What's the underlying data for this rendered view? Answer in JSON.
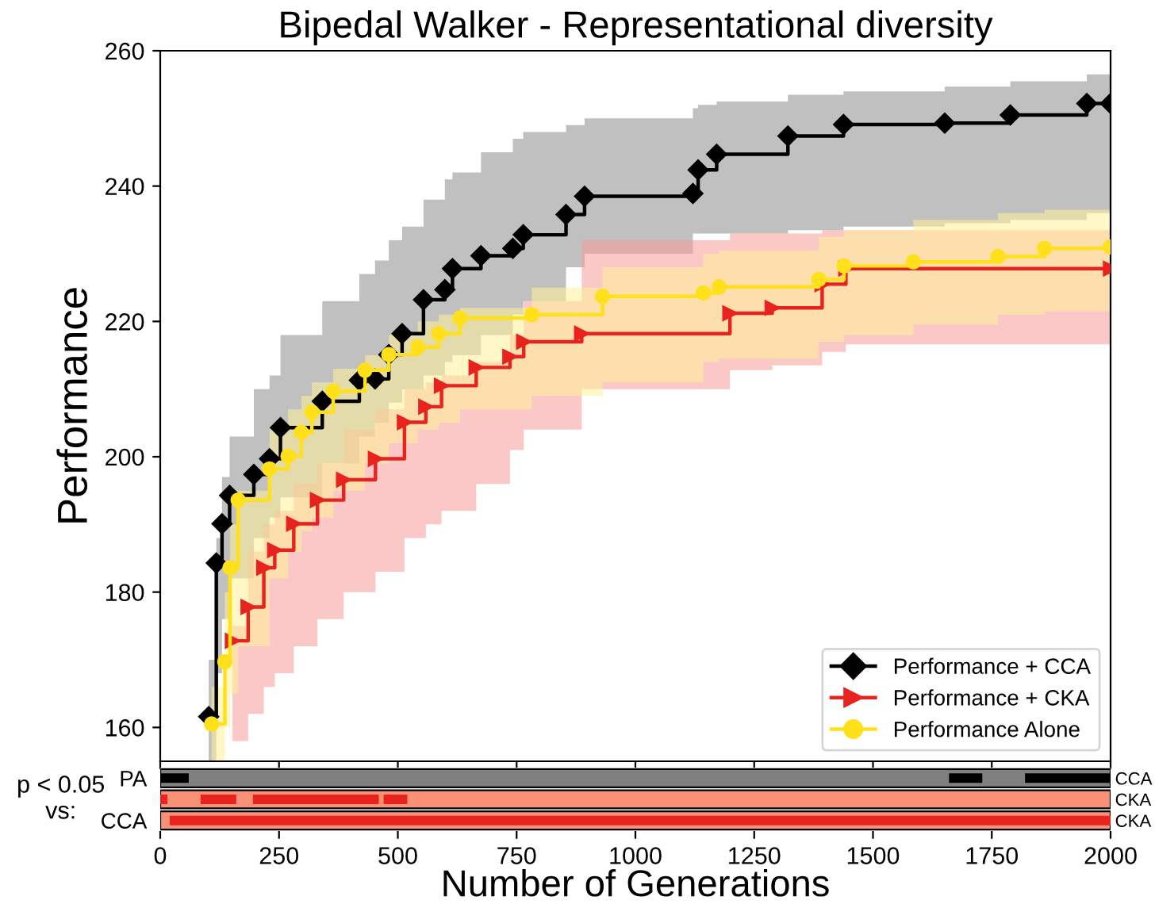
{
  "chart_data": [
    {
      "type": "step",
      "title": "Bipedal Walker - Representational diversity",
      "ylabel": "Performance",
      "xlim": [
        0,
        2000
      ],
      "xticks": [
        {
          "value": 0,
          "label": null
        },
        {
          "value": 250,
          "label": null
        },
        {
          "value": 500,
          "label": null
        },
        {
          "value": 750,
          "label": null
        },
        {
          "value": 1000,
          "label": null
        },
        {
          "value": 1250,
          "label": null
        },
        {
          "value": 1500,
          "label": null
        },
        {
          "value": 1750,
          "label": null
        },
        {
          "value": 2000,
          "label": null
        }
      ],
      "ylim": [
        155,
        260
      ],
      "yticks": [
        160,
        180,
        200,
        220,
        240,
        260
      ],
      "tick_labels": "y",
      "grid": false,
      "legend": "bottom right",
      "series": [
        {
          "name": "Performance + CCA",
          "color": "#000000",
          "marker": "diamond",
          "x": [
            102,
            118,
            130,
            146,
            197,
            230,
            253,
            341,
            419,
            452,
            481,
            509,
            554,
            599,
            615,
            675,
            742,
            764,
            854,
            893,
            1121,
            1132,
            1171,
            1321,
            1438,
            1651,
            1789,
            1950,
            2000
          ],
          "values": [
            161.6,
            184.3,
            190.1,
            194.3,
            197.4,
            199.7,
            204.3,
            208.2,
            211.3,
            211.5,
            215.1,
            218.2,
            223.2,
            224.7,
            227.8,
            229.7,
            230.8,
            232.8,
            235.8,
            238.5,
            238.9,
            242.4,
            244.7,
            247.4,
            249.1,
            249.3,
            250.5,
            252.2,
            252.2
          ],
          "lower": [
            155,
            168,
            176,
            182,
            188,
            191,
            194,
            199,
            203,
            205,
            208,
            210,
            212,
            214,
            215,
            218,
            221,
            223,
            228,
            230,
            233,
            233,
            233,
            233.5,
            234,
            234.5,
            235,
            236,
            236
          ],
          "upper": [
            170,
            188,
            197,
            203,
            210,
            212,
            218,
            223,
            227,
            229,
            232,
            234,
            238,
            241,
            242,
            245,
            247,
            248,
            249,
            250,
            251.5,
            252,
            252.5,
            253.5,
            254,
            254.7,
            255.5,
            256.5,
            256.6
          ]
        },
        {
          "name": "Performance + CKA",
          "color": "#e8221d",
          "marker": "triangle",
          "x": [
            152,
            185,
            218,
            241,
            281,
            331,
            386,
            453,
            514,
            559,
            592,
            665,
            736,
            765,
            887,
            1199,
            1288,
            1393,
            1443,
            2000
          ],
          "values": [
            172.8,
            177.8,
            183.6,
            186.2,
            190.1,
            193.6,
            196.6,
            199.7,
            205.1,
            207.4,
            210.5,
            213.2,
            214.8,
            217,
            218.2,
            221.2,
            222,
            225.5,
            227.8,
            227.8
          ],
          "lower": [
            158,
            162,
            166,
            168,
            172,
            176,
            180,
            183,
            188,
            190,
            192,
            196,
            201,
            204,
            210,
            212.8,
            213.5,
            215.5,
            216.6,
            218.9
          ],
          "upper": [
            175,
            186,
            190,
            192,
            196,
            199,
            204,
            207,
            210,
            211,
            212,
            214,
            218,
            223,
            232,
            233,
            233,
            233.5,
            233.5,
            234.5
          ]
        },
        {
          "name": "Performance Alone",
          "color": "#ffe01a",
          "marker": "circle",
          "x": [
            108,
            136,
            147,
            164,
            230,
            269,
            297,
            319,
            364,
            431,
            481,
            542,
            586,
            631,
            782,
            931,
            1143,
            1176,
            1386,
            1439,
            1585,
            1763,
            1861,
            2000
          ],
          "values": [
            160.5,
            169.7,
            183.6,
            193.6,
            198.2,
            200.1,
            203.6,
            206.6,
            209.7,
            212.8,
            215.1,
            216.2,
            218.2,
            220.5,
            221,
            223.7,
            224.2,
            225.1,
            226.2,
            228.2,
            228.8,
            229.6,
            230.8,
            231
          ],
          "lower": [
            155,
            160,
            165,
            172,
            182,
            186,
            189,
            191,
            195,
            199,
            202,
            204,
            205,
            207,
            209,
            211,
            214,
            214.5,
            217,
            218,
            219.5,
            221,
            221.5,
            222
          ],
          "upper": [
            166,
            180,
            190,
            195,
            204,
            207,
            209,
            211,
            213,
            215,
            218,
            220,
            221,
            222,
            225,
            228,
            230,
            230.5,
            232.5,
            233.5,
            235,
            236,
            236.5,
            237
          ]
        }
      ]
    },
    {
      "type": "bar",
      "orientation": "horizontal",
      "xlabel": "Number of Generations",
      "ylabel": "p < 0.05\nvs:",
      "categories": [
        "PA",
        null,
        "CCA"
      ],
      "y2_categories": [
        "CCA",
        "CKA",
        "CKA"
      ],
      "xlim": [
        0,
        2000
      ],
      "xticks": [
        0,
        250,
        500,
        750,
        1000,
        1250,
        1500,
        1750,
        2000
      ],
      "series": [
        {
          "base": [
            0,
            0,
            0
          ],
          "values": [
            2000,
            2000,
            2000
          ],
          "colors": [
            "#808080",
            "#f99078",
            "#f99078"
          ]
        },
        {
          "base": [
            0,
            0,
            20
          ],
          "values": [
            60,
            15,
            1980
          ],
          "colors": [
            "#000000",
            "#e8221d",
            "#e8221d"
          ]
        },
        {
          "base": [
            1660,
            85,
            null
          ],
          "values": [
            70,
            75,
            null
          ],
          "colors": [
            "#000000",
            "#e8221d",
            "#e8221d"
          ]
        },
        {
          "base": [
            1820,
            195,
            null
          ],
          "values": [
            180,
            265,
            null
          ],
          "colors": [
            "#000000",
            "#e8221d",
            "#e8221d"
          ]
        },
        {
          "base": [
            null,
            470,
            null
          ],
          "values": [
            null,
            50,
            null
          ],
          "colors": [
            "#000000",
            "#e8221d",
            "#e8221d"
          ]
        }
      ]
    }
  ]
}
